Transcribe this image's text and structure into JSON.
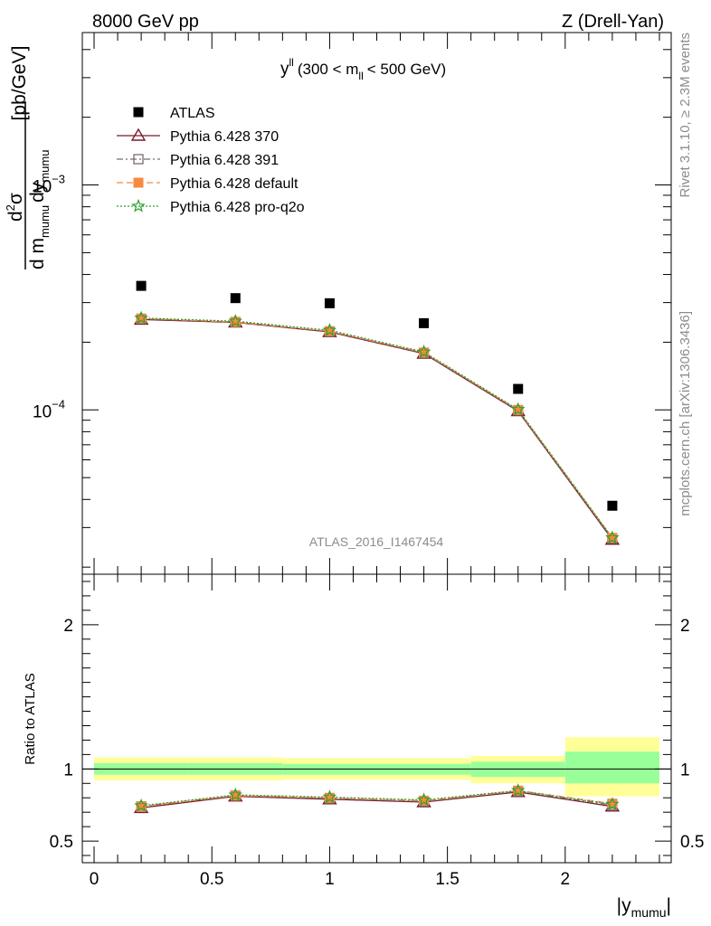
{
  "header": {
    "left": "8000 GeV pp",
    "right": "Z (Drell-Yan)"
  },
  "plot_title": {
    "main": "y",
    "sup": "ll",
    "range_open": "(300 < m",
    "range_sub": "ll",
    "range_close": "< 500 GeV)"
  },
  "side_labels": {
    "rivet": "Rivet 3.1.10, ≥ 2.3M events",
    "mcplots": "mcplots.cern.ch [arXiv:1306.3436]"
  },
  "watermark": "ATLAS_2016_I1467454",
  "y_label": {
    "unit": "[pb/GeV]",
    "num_d": "d",
    "num_sup": "2",
    "num_sigma": "σ",
    "den_d1": "d m",
    "den_sub1": "mumu",
    "den_d2": "dy",
    "den_sub2": "mumu"
  },
  "ratio_label": "Ratio to ATLAS",
  "x_label": {
    "open": "|y",
    "sub": "mumu",
    "close": "|"
  },
  "chart_data": [
    {
      "type": "scatter",
      "panel": "main",
      "yscale": "log",
      "ylim": [
        1.86e-05,
        0.00476
      ],
      "xlim": [
        -0.05,
        2.45
      ],
      "x": [
        0.2,
        0.6,
        1.0,
        1.4,
        1.8,
        2.2
      ],
      "y_ticks": [
        {
          "value": 0.001,
          "base": "10",
          "exp": "−3"
        },
        {
          "value": 0.0001,
          "base": "10",
          "exp": "−4"
        }
      ],
      "series": [
        {
          "name": "ATLAS",
          "marker": "filled-square",
          "color": "#000000",
          "values": [
            0.000356,
            0.000314,
            0.000298,
            0.000243,
            0.000124,
            3.75e-05
          ]
        },
        {
          "name": "Pythia 6.428 370",
          "marker": "open-triangle",
          "color": "#7a1a2b",
          "line": "solid",
          "values": [
            0.000252,
            0.000245,
            0.000222,
            0.000178,
            9.88e-05,
            2.65e-05
          ]
        },
        {
          "name": "Pythia 6.428 391",
          "marker": "open-square",
          "color": "#7a6a72",
          "line": "dash-dot",
          "values": [
            0.000254,
            0.000246,
            0.000223,
            0.000179,
            9.95e-05,
            2.68e-05
          ]
        },
        {
          "name": "Pythia 6.428 default",
          "marker": "filled-square",
          "color": "#f58a42",
          "line": "dashed",
          "values": [
            0.000255,
            0.000246,
            0.000224,
            0.00018,
            0.0001,
            2.7e-05
          ]
        },
        {
          "name": "Pythia 6.428 pro-q2o",
          "marker": "open-star",
          "color": "#2ca02c",
          "line": "dotted",
          "values": [
            0.000256,
            0.000248,
            0.000226,
            0.000181,
            0.0001005,
            2.7e-05
          ]
        }
      ],
      "legend_position": "top-left"
    },
    {
      "type": "line",
      "panel": "ratio",
      "ylim": [
        0.35,
        2.35
      ],
      "y_ticks": [
        "0.5",
        "1",
        "2"
      ],
      "x_ticks": [
        "0",
        "0.5",
        "1",
        "1.5",
        "2"
      ],
      "x_tick_values": [
        0,
        0.5,
        1,
        1.5,
        2
      ],
      "uncertainty_bands": [
        {
          "x0": 0.0,
          "x1": 0.4,
          "green": [
            0.96,
            1.04
          ],
          "yellow": [
            0.92,
            1.08
          ]
        },
        {
          "x0": 0.4,
          "x1": 0.8,
          "green": [
            0.96,
            1.04
          ],
          "yellow": [
            0.92,
            1.08
          ]
        },
        {
          "x0": 0.8,
          "x1": 1.2,
          "green": [
            0.96,
            1.035
          ],
          "yellow": [
            0.925,
            1.075
          ]
        },
        {
          "x0": 1.2,
          "x1": 1.6,
          "green": [
            0.96,
            1.035
          ],
          "yellow": [
            0.925,
            1.075
          ]
        },
        {
          "x0": 1.6,
          "x1": 2.0,
          "green": [
            0.945,
            1.05
          ],
          "yellow": [
            0.9,
            1.09
          ]
        },
        {
          "x0": 2.0,
          "x1": 2.4,
          "green": [
            0.9,
            1.12
          ],
          "yellow": [
            0.81,
            1.22
          ]
        }
      ],
      "series": [
        {
          "name": "Pythia 6.428 370",
          "color": "#7a1a2b",
          "values": [
            0.73,
            0.81,
            0.79,
            0.77,
            0.84,
            0.74
          ]
        },
        {
          "name": "Pythia 6.428 391",
          "color": "#7a6a72",
          "values": [
            0.74,
            0.815,
            0.795,
            0.775,
            0.845,
            0.75
          ]
        },
        {
          "name": "Pythia 6.428 default",
          "color": "#f58a42",
          "values": [
            0.74,
            0.815,
            0.8,
            0.78,
            0.85,
            0.76
          ]
        },
        {
          "name": "Pythia 6.428 pro-q2o",
          "color": "#2ca02c",
          "values": [
            0.745,
            0.82,
            0.805,
            0.785,
            0.85,
            0.755
          ]
        }
      ]
    }
  ]
}
